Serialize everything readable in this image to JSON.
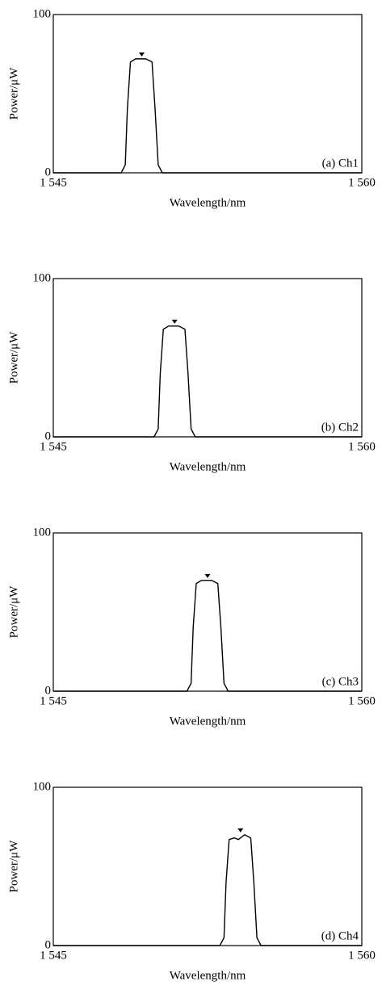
{
  "chart_data": [
    {
      "type": "line",
      "xlabel": "Wavelength/nm",
      "ylabel": "Power/μW",
      "annotation": "(a) Ch1",
      "xlim": [
        1545,
        1560
      ],
      "ylim": [
        0,
        100
      ],
      "xticks": [
        {
          "value": 1545,
          "label": "1 545"
        },
        {
          "value": 1560,
          "label": "1 560"
        }
      ],
      "yticks": [
        0,
        100
      ],
      "x": [
        1545,
        1548.3,
        1548.5,
        1548.6,
        1548.75,
        1549.0,
        1549.5,
        1549.8,
        1549.95,
        1550.1,
        1550.3,
        1560
      ],
      "values": [
        0,
        0,
        5,
        40,
        70,
        72,
        72,
        70,
        40,
        5,
        0,
        0
      ],
      "color": "#000000",
      "peak": {
        "x": 1549.3,
        "y": 74
      }
    },
    {
      "type": "line",
      "xlabel": "Wavelength/nm",
      "ylabel": "Power/μW",
      "annotation": "(b) Ch2",
      "xlim": [
        1545,
        1560
      ],
      "ylim": [
        0,
        100
      ],
      "xticks": [
        {
          "value": 1545,
          "label": "1 545"
        },
        {
          "value": 1560,
          "label": "1 560"
        }
      ],
      "yticks": [
        0,
        100
      ],
      "x": [
        1545,
        1549.9,
        1550.1,
        1550.2,
        1550.35,
        1550.6,
        1551.1,
        1551.4,
        1551.55,
        1551.7,
        1551.9,
        1560
      ],
      "values": [
        0,
        0,
        5,
        40,
        68,
        70,
        70,
        68,
        40,
        5,
        0,
        0
      ],
      "color": "#000000",
      "peak": {
        "x": 1550.9,
        "y": 72
      }
    },
    {
      "type": "line",
      "xlabel": "Wavelength/nm",
      "ylabel": "Power/μW",
      "annotation": "(c) Ch3",
      "xlim": [
        1545,
        1560
      ],
      "ylim": [
        0,
        100
      ],
      "xticks": [
        {
          "value": 1545,
          "label": "1 545"
        },
        {
          "value": 1560,
          "label": "1 560"
        }
      ],
      "yticks": [
        0,
        100
      ],
      "x": [
        1545,
        1551.5,
        1551.7,
        1551.8,
        1551.95,
        1552.2,
        1552.7,
        1553.0,
        1553.15,
        1553.3,
        1553.5,
        1560
      ],
      "values": [
        0,
        0,
        5,
        40,
        68,
        70,
        70,
        68,
        40,
        5,
        0,
        0
      ],
      "color": "#000000",
      "peak": {
        "x": 1552.5,
        "y": 72
      }
    },
    {
      "type": "line",
      "xlabel": "Wavelength/nm",
      "ylabel": "Power/μW",
      "annotation": "(d) Ch4",
      "xlim": [
        1545,
        1560
      ],
      "ylim": [
        0,
        100
      ],
      "xticks": [
        {
          "value": 1545,
          "label": "1 545"
        },
        {
          "value": 1560,
          "label": "1 560"
        }
      ],
      "yticks": [
        0,
        100
      ],
      "x": [
        1545,
        1553.1,
        1553.3,
        1553.4,
        1553.55,
        1553.8,
        1554.0,
        1554.3,
        1554.6,
        1554.75,
        1554.9,
        1555.1,
        1560
      ],
      "values": [
        0,
        0,
        5,
        40,
        67,
        68,
        67,
        70,
        68,
        40,
        5,
        0,
        0
      ],
      "color": "#000000",
      "peak": {
        "x": 1554.1,
        "y": 72
      }
    }
  ]
}
